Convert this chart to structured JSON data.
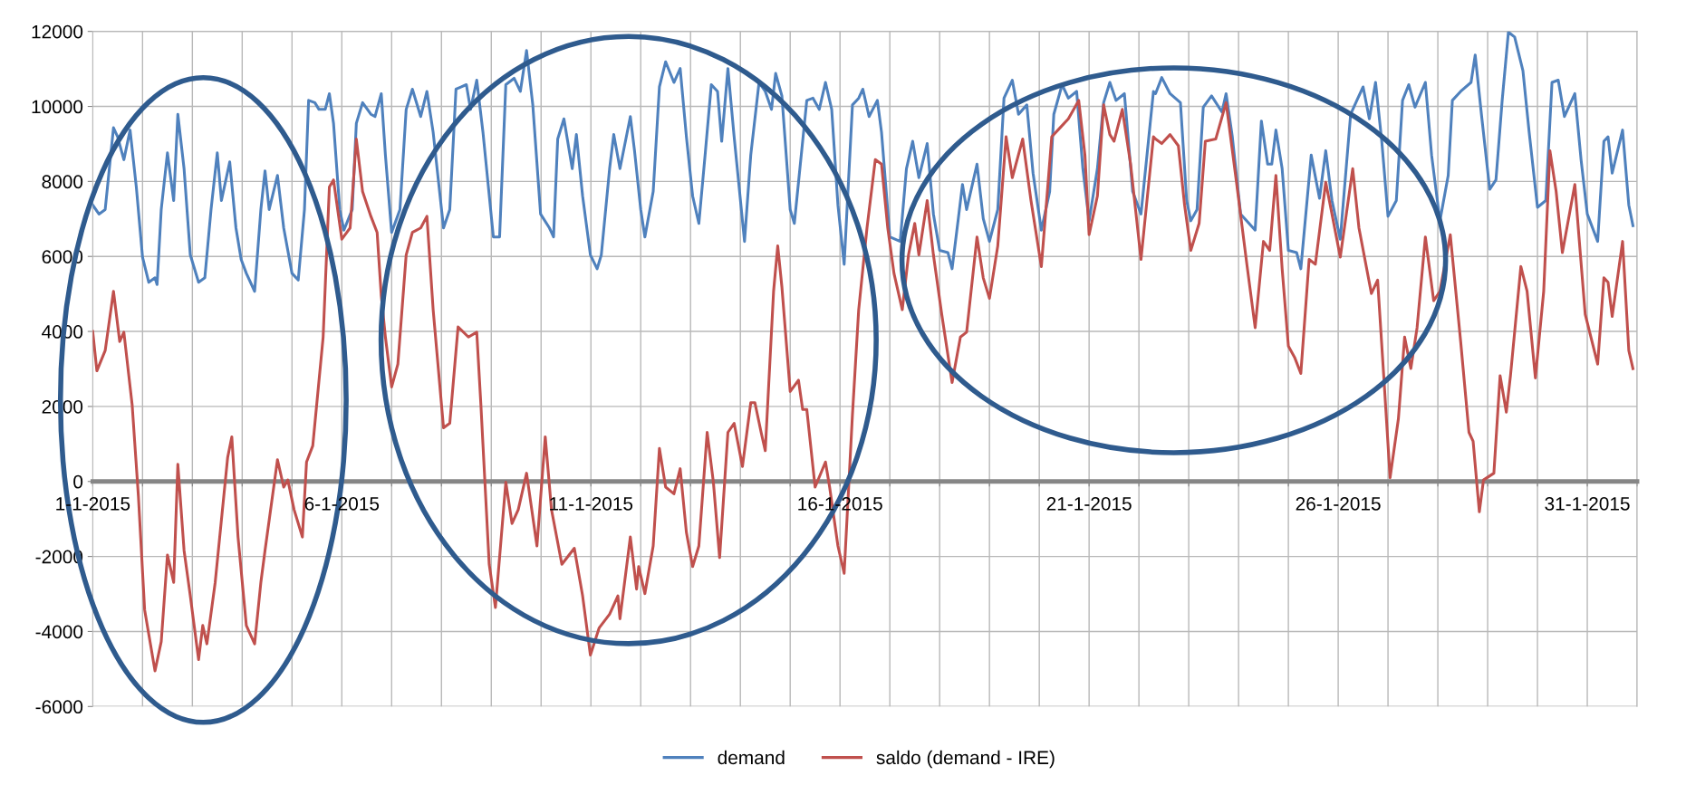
{
  "chart_data": {
    "type": "line",
    "series": [
      {
        "name": "demand",
        "color": "#4f81bd",
        "x": [
          "2015-01-01T00:00",
          "2015-01-01T03:00",
          "2015-01-01T06:00",
          "2015-01-01T08:00",
          "2015-01-01T10:00",
          "2015-01-01T12:00",
          "2015-01-01T15:00",
          "2015-01-01T18:00",
          "2015-01-01T21:00",
          "2015-01-02T00:00",
          "2015-01-02T03:00",
          "2015-01-02T06:00",
          "2015-01-02T07:00",
          "2015-01-02T09:00",
          "2015-01-02T12:00",
          "2015-01-02T15:00",
          "2015-01-02T17:00",
          "2015-01-02T20:00",
          "2015-01-02T23:00",
          "2015-01-03T03:00",
          "2015-01-03T06:00",
          "2015-01-03T09:00",
          "2015-01-03T12:00",
          "2015-01-03T14:00",
          "2015-01-03T18:00",
          "2015-01-03T21:00",
          "2015-01-03T23:30",
          "2015-01-04T02:00",
          "2015-01-04T06:00",
          "2015-01-04T09:00",
          "2015-01-04T11:00",
          "2015-01-04T13:00",
          "2015-01-04T17:00",
          "2015-01-04T20:00",
          "2015-01-05T00:00",
          "2015-01-05T03:00",
          "2015-01-05T06:00",
          "2015-01-05T08:00",
          "2015-01-05T11:00",
          "2015-01-05T13:00",
          "2015-01-05T16:00",
          "2015-01-05T18:00",
          "2015-01-05T20:00",
          "2015-01-05T23:00",
          "2015-01-06T01:00",
          "2015-01-06T05:00",
          "2015-01-06T07:00",
          "2015-01-06T10:00",
          "2015-01-06T14:00",
          "2015-01-06T16:00",
          "2015-01-06T19:00",
          "2015-01-06T21:00",
          "2015-01-07T00:00",
          "2015-01-07T04:00",
          "2015-01-07T07:00",
          "2015-01-07T10:00",
          "2015-01-07T14:00",
          "2015-01-07T17:00",
          "2015-01-07T20:00",
          "2015-01-08T01:00",
          "2015-01-08T04:00",
          "2015-01-08T07:00",
          "2015-01-08T12:00",
          "2015-01-08T14:00",
          "2015-01-08T17:00",
          "2015-01-08T20:00",
          "2015-01-09T01:00",
          "2015-01-09T04:00",
          "2015-01-09T07:00",
          "2015-01-09T11:00",
          "2015-01-09T14:00",
          "2015-01-09T17:00",
          "2015-01-09T20:00",
          "2015-01-09T23:45",
          "2015-01-10T04:00",
          "2015-01-10T06:00",
          "2015-01-10T08:00",
          "2015-01-10T11:00",
          "2015-01-10T15:00",
          "2015-01-10T17:00",
          "2015-01-10T20:00",
          "2015-01-10T23:45",
          "2015-01-11T03:00",
          "2015-01-11T05:00",
          "2015-01-11T09:00",
          "2015-01-11T11:00",
          "2015-01-11T14:00",
          "2015-01-11T19:00",
          "2015-01-11T21:00",
          "2015-01-12T00:00",
          "2015-01-12T02:00",
          "2015-01-12T06:00",
          "2015-01-12T09:00",
          "2015-01-12T12:00",
          "2015-01-12T16:00",
          "2015-01-12T19:00",
          "2015-01-12T22:00",
          "2015-01-13T01:00",
          "2015-01-13T04:00",
          "2015-01-13T07:00",
          "2015-01-13T10:00",
          "2015-01-13T13:00",
          "2015-01-13T15:00",
          "2015-01-13T18:00",
          "2015-01-13T21:00",
          "2015-01-14T02:00",
          "2015-01-14T05:00",
          "2015-01-14T09:00",
          "2015-01-14T12:00",
          "2015-01-14T15:00",
          "2015-01-14T17:00",
          "2015-01-14T20:00",
          "2015-01-15T00:00",
          "2015-01-15T02:00",
          "2015-01-15T08:00",
          "2015-01-15T11:00",
          "2015-01-15T14:00",
          "2015-01-15T17:00",
          "2015-01-15T20:00",
          "2015-01-15T23:00",
          "2015-01-16T02:00",
          "2015-01-16T06:00",
          "2015-01-16T09:00",
          "2015-01-16T11:00",
          "2015-01-16T14:00",
          "2015-01-16T18:00",
          "2015-01-16T20:00",
          "2015-01-17T00:00",
          "2015-01-17T05:00",
          "2015-01-17T08:00",
          "2015-01-17T11:00",
          "2015-01-17T14:00",
          "2015-01-17T18:00",
          "2015-01-17T21:00",
          "2015-01-18T00:00",
          "2015-01-18T04:00",
          "2015-01-18T06:00",
          "2015-01-18T09:00",
          "2015-01-18T11:00",
          "2015-01-18T13:00",
          "2015-01-18T18:00",
          "2015-01-18T21:00",
          "2015-01-19T00:00",
          "2015-01-19T04:00",
          "2015-01-19T07:00",
          "2015-01-19T11:00",
          "2015-01-19T14:00",
          "2015-01-19T18:00",
          "2015-01-19T21:00",
          "2015-01-20T01:00",
          "2015-01-20T05:00",
          "2015-01-20T07:00",
          "2015-01-20T11:00",
          "2015-01-20T14:00",
          "2015-01-20T18:00",
          "2015-01-20T21:00",
          "2015-01-21T00:00",
          "2015-01-21T04:00",
          "2015-01-21T07:00",
          "2015-01-21T10:00",
          "2015-01-21T13:00",
          "2015-01-21T17:00",
          "2015-01-21T21:00",
          "2015-01-22T01:00",
          "2015-01-22T07:00",
          "2015-01-22T08:00",
          "2015-01-22T11:00",
          "2015-01-22T15:00",
          "2015-01-22T20:00",
          "2015-01-22T23:00",
          "2015-01-23T01:00",
          "2015-01-23T04:00",
          "2015-01-23T07:00",
          "2015-01-23T11:00",
          "2015-01-23T16:00",
          "2015-01-23T18:00",
          "2015-01-23T21:00",
          "2015-01-24T01:00",
          "2015-01-24T08:00",
          "2015-01-24T11:00",
          "2015-01-24T14:00",
          "2015-01-24T16:00",
          "2015-01-24T18:00",
          "2015-01-24T21:00",
          "2015-01-25T00:00",
          "2015-01-25T04:00",
          "2015-01-25T06:00",
          "2015-01-25T11:00",
          "2015-01-25T15:00",
          "2015-01-25T18:00",
          "2015-01-25T21:00",
          "2015-01-26T01:00",
          "2015-01-26T06:00",
          "2015-01-26T09:00",
          "2015-01-26T12:00",
          "2015-01-26T15:00",
          "2015-01-26T18:00",
          "2015-01-26T21:00",
          "2015-01-27T00:00",
          "2015-01-27T04:00",
          "2015-01-27T07:00",
          "2015-01-27T10:00",
          "2015-01-27T13:00",
          "2015-01-27T18:00",
          "2015-01-27T21:00",
          "2015-01-28T01:00",
          "2015-01-28T05:00",
          "2015-01-28T07:00",
          "2015-01-28T11:00",
          "2015-01-28T16:00",
          "2015-01-28T18:00",
          "2015-01-28T21:00",
          "2015-01-29T01:00",
          "2015-01-29T04:00",
          "2015-01-29T07:00",
          "2015-01-29T10:00",
          "2015-01-29T13:00",
          "2015-01-29T17:00",
          "2015-01-29T20:00",
          "2015-01-30T00:00",
          "2015-01-30T04:00",
          "2015-01-30T07:00",
          "2015-01-30T10:00",
          "2015-01-30T13:00",
          "2015-01-30T18:00",
          "2015-01-30T21:00",
          "2015-01-31T00:00",
          "2015-01-31T05:00",
          "2015-01-31T08:00",
          "2015-01-31T10:00",
          "2015-01-31T12:00",
          "2015-01-31T17:00",
          "2015-01-31T20:00",
          "2015-01-31T22:00"
        ],
        "values": [
          7370,
          7130,
          7250,
          8340,
          9430,
          9190,
          8580,
          9370,
          7850,
          5980,
          5310,
          5430,
          5250,
          7250,
          8760,
          7490,
          9790,
          8340,
          6040,
          5310,
          5430,
          7250,
          8760,
          7490,
          8520,
          6760,
          5920,
          5550,
          5070,
          7250,
          8280,
          7250,
          8160,
          6760,
          5550,
          5370,
          7250,
          10160,
          10100,
          9920,
          9920,
          10340,
          9550,
          7250,
          6700,
          7250,
          9550,
          10100,
          9790,
          9730,
          10340,
          8700,
          6640,
          7250,
          9920,
          10460,
          9730,
          10400,
          9310,
          6760,
          7250,
          10460,
          10580,
          9920,
          10700,
          9310,
          6520,
          6520,
          10580,
          10750,
          10400,
          11490,
          10040,
          7130,
          6760,
          6520,
          9130,
          9670,
          8340,
          9250,
          7610,
          6040,
          5670,
          6040,
          8340,
          9250,
          8340,
          9730,
          8820,
          7250,
          6520,
          7730,
          10520,
          11190,
          10640,
          11010,
          9190,
          7610,
          6880,
          8700,
          10580,
          10400,
          9070,
          11010,
          9190,
          6400,
          8700,
          10640,
          10400,
          9920,
          10880,
          10280,
          7250,
          6880,
          10160,
          10220,
          9920,
          10640,
          9920,
          7370,
          5790,
          10040,
          10220,
          10460,
          9730,
          10160,
          9310,
          6520,
          6400,
          8340,
          9070,
          8100,
          9010,
          7130,
          6160,
          6100,
          5670,
          7010,
          7920,
          7250,
          8460,
          7010,
          6400,
          7250,
          10220,
          10700,
          9790,
          10040,
          8220,
          6700,
          7730,
          9790,
          10580,
          10220,
          10400,
          8340,
          6950,
          8340,
          10100,
          10640,
          10160,
          10340,
          7730,
          7130,
          10400,
          10340,
          10770,
          10340,
          10100,
          7490,
          6950,
          7250,
          9980,
          10280,
          9850,
          10340,
          9190,
          7130,
          6700,
          9610,
          8460,
          8460,
          9370,
          8340,
          6160,
          6100,
          5670,
          8700,
          7550,
          8820,
          7490,
          6460,
          9790,
          10160,
          10520,
          9670,
          10640,
          9070,
          7070,
          7490,
          10160,
          10580,
          9980,
          10640,
          8700,
          6950,
          8160,
          10160,
          10400,
          10640,
          11370,
          9790,
          7790,
          8040,
          10160,
          11980,
          11850,
          10950,
          9310,
          7310,
          7490,
          10640,
          10700,
          9730,
          10340,
          8580,
          7130,
          6400,
          9070,
          9190,
          8220,
          9370,
          7370,
          6820
        ]
      },
      {
        "name": "saldo (demand - IRE)",
        "color": "#c0504d",
        "x": [
          "2015-01-01T00:00",
          "2015-01-01T02:00",
          "2015-01-01T06:00",
          "2015-01-01T10:00",
          "2015-01-01T13:00",
          "2015-01-01T15:00",
          "2015-01-01T19:00",
          "2015-01-01T22:00",
          "2015-01-02T01:00",
          "2015-01-02T06:00",
          "2015-01-02T09:00",
          "2015-01-02T12:00",
          "2015-01-02T15:00",
          "2015-01-02T17:00",
          "2015-01-02T20:00",
          "2015-01-02T23:00",
          "2015-01-03T03:00",
          "2015-01-03T05:00",
          "2015-01-03T07:00",
          "2015-01-03T11:00",
          "2015-01-03T17:00",
          "2015-01-03T19:00",
          "2015-01-03T22:00",
          "2015-01-04T02:00",
          "2015-01-04T06:00",
          "2015-01-04T09:00",
          "2015-01-04T11:00",
          "2015-01-04T17:00",
          "2015-01-04T20:00",
          "2015-01-04T22:00",
          "2015-01-05T01:00",
          "2015-01-05T05:00",
          "2015-01-05T07:00",
          "2015-01-05T10:00",
          "2015-01-05T15:00",
          "2015-01-05T18:00",
          "2015-01-05T20:00",
          "2015-01-06T00:00",
          "2015-01-06T04:00",
          "2015-01-06T07:00",
          "2015-01-06T10:00",
          "2015-01-06T14:00",
          "2015-01-06T17:00",
          "2015-01-06T19:00",
          "2015-01-06T21:00",
          "2015-01-07T00:00",
          "2015-01-07T03:00",
          "2015-01-07T07:00",
          "2015-01-07T10:00",
          "2015-01-07T14:00",
          "2015-01-07T17:00",
          "2015-01-07T20:00",
          "2015-01-08T01:00",
          "2015-01-08T04:00",
          "2015-01-08T08:00",
          "2015-01-08T13:00",
          "2015-01-08T17:00",
          "2015-01-08T19:00",
          "2015-01-08T23:00",
          "2015-01-09T02:00",
          "2015-01-09T07:00",
          "2015-01-09T10:00",
          "2015-01-09T13:00",
          "2015-01-09T17:00",
          "2015-01-09T22:00",
          "2015-01-10T02:00",
          "2015-01-10T05:00",
          "2015-01-10T10:00",
          "2015-01-10T16:00",
          "2015-01-10T20:00",
          "2015-01-10T23:45",
          "2015-01-11T04:00",
          "2015-01-11T09:00",
          "2015-01-11T13:00",
          "2015-01-11T14:00",
          "2015-01-11T19:00",
          "2015-01-11T22:00",
          "2015-01-11T23:00",
          "2015-01-12T02:00",
          "2015-01-12T06:00",
          "2015-01-12T09:00",
          "2015-01-12T12:00",
          "2015-01-12T16:00",
          "2015-01-12T19:00",
          "2015-01-12T22:00",
          "2015-01-13T01:00",
          "2015-01-13T04:00",
          "2015-01-13T08:00",
          "2015-01-13T11:00",
          "2015-01-13T14:00",
          "2015-01-13T18:00",
          "2015-01-13T21:00",
          "2015-01-14T01:00",
          "2015-01-14T05:00",
          "2015-01-14T07:00",
          "2015-01-14T10:00",
          "2015-01-14T12:00",
          "2015-01-14T16:00",
          "2015-01-14T18:00",
          "2015-01-14T20:00",
          "2015-01-15T00:00",
          "2015-01-15T04:00",
          "2015-01-15T06:00",
          "2015-01-15T08:00",
          "2015-01-15T12:00",
          "2015-01-15T17:00",
          "2015-01-15T19:00",
          "2015-01-15T23:00",
          "2015-01-16T02:00",
          "2015-01-16T06:00",
          "2015-01-16T09:00",
          "2015-01-16T13:00",
          "2015-01-16T17:00",
          "2015-01-16T20:00",
          "2015-01-16T23:00",
          "2015-01-17T02:00",
          "2015-01-17T06:00",
          "2015-01-17T09:00",
          "2015-01-17T12:00",
          "2015-01-17T14:00",
          "2015-01-17T18:00",
          "2015-01-17T21:00",
          "2015-01-18T01:00",
          "2015-01-18T06:00",
          "2015-01-18T10:00",
          "2015-01-18T13:00",
          "2015-01-18T18:00",
          "2015-01-18T21:00",
          "2015-01-19T00:00",
          "2015-01-19T04:00",
          "2015-01-19T08:00",
          "2015-01-19T11:00",
          "2015-01-19T16:00",
          "2015-01-19T20:00",
          "2015-01-20T01:00",
          "2015-01-20T06:00",
          "2015-01-20T10:00",
          "2015-01-20T14:00",
          "2015-01-20T19:00",
          "2015-01-20T22:00",
          "2015-01-21T00:00",
          "2015-01-21T04:00",
          "2015-01-21T07:00",
          "2015-01-21T10:00",
          "2015-01-21T12:00",
          "2015-01-21T16:00",
          "2015-01-21T20:00",
          "2015-01-22T01:00",
          "2015-01-22T07:00",
          "2015-01-22T08:00",
          "2015-01-22T11:00",
          "2015-01-22T15:00",
          "2015-01-22T19:00",
          "2015-01-22T22:00",
          "2015-01-23T01:00",
          "2015-01-23T05:00",
          "2015-01-23T08:00",
          "2015-01-23T13:00",
          "2015-01-23T18:00",
          "2015-01-23T23:00",
          "2015-01-24T04:00",
          "2015-01-24T08:00",
          "2015-01-24T12:00",
          "2015-01-24T15:00",
          "2015-01-24T18:00",
          "2015-01-24T21:00",
          "2015-01-25T00:00",
          "2015-01-25T03:00",
          "2015-01-25T06:00",
          "2015-01-25T10:00",
          "2015-01-25T13:00",
          "2015-01-25T18:00",
          "2015-01-25T21:00",
          "2015-01-26T01:00",
          "2015-01-26T07:00",
          "2015-01-26T10:00",
          "2015-01-26T16:00",
          "2015-01-26T19:00",
          "2015-01-26T22:00",
          "2015-01-27T01:00",
          "2015-01-27T05:00",
          "2015-01-27T08:00",
          "2015-01-27T11:00",
          "2015-01-27T14:00",
          "2015-01-27T18:00",
          "2015-01-27T22:00",
          "2015-01-28T01:00",
          "2015-01-28T06:00",
          "2015-01-28T11:00",
          "2015-01-28T15:00",
          "2015-01-28T17:00",
          "2015-01-28T20:00",
          "2015-01-28T22:00",
          "2015-01-29T03:00",
          "2015-01-29T06:00",
          "2015-01-29T09:00",
          "2015-01-29T11:00",
          "2015-01-29T16:00",
          "2015-01-29T19:00",
          "2015-01-29T23:00",
          "2015-01-30T03:00",
          "2015-01-30T06:00",
          "2015-01-30T09:00",
          "2015-01-30T12:00",
          "2015-01-30T18:00",
          "2015-01-30T20:00",
          "2015-01-30T23:00",
          "2015-01-31T05:00",
          "2015-01-31T08:00",
          "2015-01-31T10:00",
          "2015-01-31T12:00",
          "2015-01-31T17:00",
          "2015-01-31T20:00",
          "2015-01-31T22:00"
        ],
        "values": [
          4000,
          2950,
          3490,
          5070,
          3730,
          3980,
          2040,
          -390,
          -3420,
          -5050,
          -4270,
          -1960,
          -2690,
          460,
          -1840,
          -3050,
          -4750,
          -3840,
          -4330,
          -2690,
          640,
          1190,
          -1480,
          -3840,
          -4330,
          -2690,
          -1840,
          580,
          -150,
          40,
          -750,
          -1480,
          520,
          950,
          3850,
          7850,
          8040,
          6460,
          6760,
          9130,
          7730,
          7070,
          6640,
          4950,
          3850,
          2520,
          3130,
          6040,
          6640,
          6760,
          7070,
          4580,
          1430,
          1550,
          4120,
          3850,
          3980,
          2040,
          -2210,
          -3360,
          -20,
          -1120,
          -750,
          220,
          -1720,
          1190,
          -750,
          -2210,
          -1780,
          -3050,
          -4630,
          -3900,
          -3540,
          -3050,
          -3660,
          -1480,
          -2870,
          -2270,
          -2990,
          -1720,
          880,
          -150,
          -330,
          340,
          -1360,
          -2270,
          -1720,
          1310,
          -20,
          -2030,
          1310,
          1550,
          400,
          2100,
          2100,
          1310,
          820,
          5070,
          6280,
          5190,
          2400,
          2700,
          1920,
          1920,
          -150,
          520,
          -150,
          -1720,
          -2450,
          1790,
          4580,
          6760,
          8580,
          8460,
          6760,
          5550,
          4580,
          6040,
          6880,
          6040,
          7490,
          6040,
          4460,
          2640,
          3850,
          3980,
          6520,
          5430,
          4880,
          6280,
          9190,
          8100,
          9130,
          7490,
          5730,
          9190,
          9430,
          9670,
          10160,
          8700,
          6580,
          7610,
          10040,
          9250,
          9070,
          9920,
          8460,
          5920,
          9190,
          9130,
          9010,
          9250,
          8950,
          7370,
          6160,
          6880,
          9070,
          9130,
          10100,
          7980,
          5790,
          4100,
          6400,
          6160,
          8160,
          5670,
          3610,
          3310,
          2880,
          5920,
          5790,
          7980,
          7130,
          5980,
          8340,
          6760,
          5010,
          5370,
          2760,
          100,
          1670,
          3850,
          3010,
          4100,
          6520,
          4820,
          5070,
          6580,
          3730,
          1310,
          1070,
          -810,
          40,
          220,
          2820,
          1850,
          2820,
          5730,
          5070,
          2760,
          5070,
          8820,
          7730,
          6100,
          7920,
          6520,
          4460,
          3130,
          5430,
          5310,
          4400,
          6400,
          3490,
          3010
        ]
      }
    ],
    "xlim": [
      "2015-01-01",
      "2015-02-01"
    ],
    "xticks": [
      {
        "value": "2015-01-01",
        "label": "1-1-2015"
      },
      {
        "value": "2015-01-02",
        "label": null
      },
      {
        "value": "2015-01-03",
        "label": null
      },
      {
        "value": "2015-01-04",
        "label": null
      },
      {
        "value": "2015-01-05",
        "label": null
      },
      {
        "value": "2015-01-06",
        "label": "6-1-2015"
      },
      {
        "value": "2015-01-07",
        "label": null
      },
      {
        "value": "2015-01-08",
        "label": null
      },
      {
        "value": "2015-01-09",
        "label": null
      },
      {
        "value": "2015-01-10",
        "label": null
      },
      {
        "value": "2015-01-11",
        "label": "11-1-2015"
      },
      {
        "value": "2015-01-12",
        "label": null
      },
      {
        "value": "2015-01-13",
        "label": null
      },
      {
        "value": "2015-01-14",
        "label": null
      },
      {
        "value": "2015-01-15",
        "label": null
      },
      {
        "value": "2015-01-16",
        "label": "16-1-2015"
      },
      {
        "value": "2015-01-17",
        "label": null
      },
      {
        "value": "2015-01-18",
        "label": null
      },
      {
        "value": "2015-01-19",
        "label": null
      },
      {
        "value": "2015-01-20",
        "label": null
      },
      {
        "value": "2015-01-21",
        "label": "21-1-2015"
      },
      {
        "value": "2015-01-22",
        "label": null
      },
      {
        "value": "2015-01-23",
        "label": null
      },
      {
        "value": "2015-01-24",
        "label": null
      },
      {
        "value": "2015-01-25",
        "label": null
      },
      {
        "value": "2015-01-26",
        "label": "26-1-2015"
      },
      {
        "value": "2015-01-27",
        "label": null
      },
      {
        "value": "2015-01-28",
        "label": null
      },
      {
        "value": "2015-01-29",
        "label": null
      },
      {
        "value": "2015-01-30",
        "label": null
      },
      {
        "value": "2015-01-31",
        "label": "31-1-2015"
      },
      {
        "value": "2015-02-01",
        "label": null
      }
    ],
    "ylim": [
      -6000,
      12000
    ],
    "yticks": [
      -6000,
      -4000,
      -2000,
      0,
      2000,
      4000,
      6000,
      8000,
      10000,
      12000
    ],
    "grid": true,
    "legend": "bottom",
    "marker": "none",
    "line_style": "solid"
  }
}
